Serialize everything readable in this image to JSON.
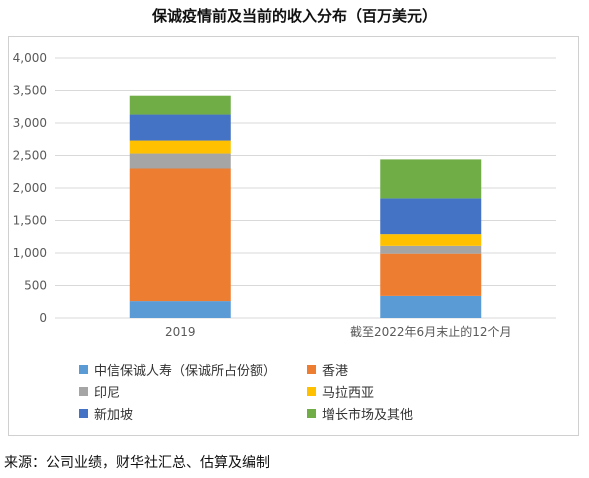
{
  "chart_title": "保诚疫情前及当前的收入分布（百万美元）",
  "source_note": "来源：公司业绩，财华社汇总、估算及编制",
  "chart_data": {
    "type": "bar",
    "stacked": true,
    "title": "保诚疫情前及当前的收入分布（百万美元）",
    "xlabel": "",
    "ylabel": "",
    "ylim": [
      0,
      4000
    ],
    "yticks": [
      0,
      500,
      1000,
      1500,
      2000,
      2500,
      3000,
      3500,
      4000
    ],
    "ytick_labels": [
      "0",
      "500",
      "1,000",
      "1,500",
      "2,000",
      "2,500",
      "3,000",
      "3,500",
      "4,000"
    ],
    "grid": true,
    "legend_position": "bottom",
    "categories": [
      "2019",
      "截至2022年6月末止的12个月"
    ],
    "series": [
      {
        "name": "中信保诚人寿（保诚所占份额）",
        "color": "#5b9bd5",
        "values": [
          260,
          340
        ]
      },
      {
        "name": "香港",
        "color": "#ed7d31",
        "values": [
          2040,
          650
        ]
      },
      {
        "name": "印尼",
        "color": "#a5a5a5",
        "values": [
          230,
          120
        ]
      },
      {
        "name": "马拉西亚",
        "color": "#ffc000",
        "values": [
          200,
          180
        ]
      },
      {
        "name": "新加坡",
        "color": "#4472c4",
        "values": [
          400,
          550
        ]
      },
      {
        "name": "增长市场及其他",
        "color": "#70ad47",
        "values": [
          290,
          600
        ]
      }
    ]
  }
}
